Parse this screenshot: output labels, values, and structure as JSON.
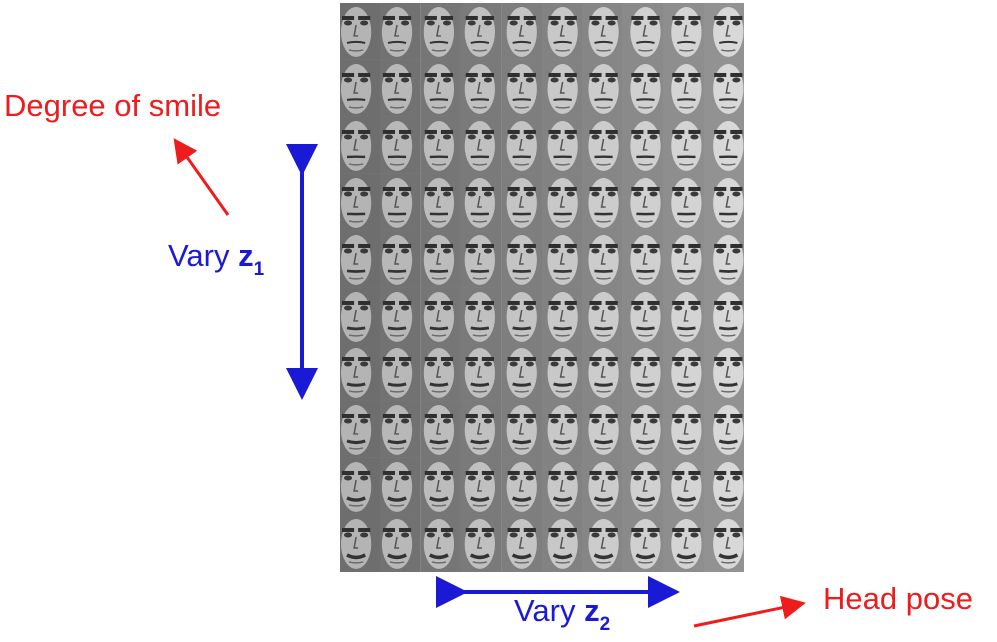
{
  "labels": {
    "degree_of_smile": "Degree of smile",
    "head_pose": "Head pose",
    "vary": "Vary",
    "z1_var": "z",
    "z1_sub": "1",
    "z2_var": "z",
    "z2_sub": "2"
  },
  "colors": {
    "annotation_red": "#ee1c1c",
    "axis_blue": "#1a1ad6"
  },
  "face_grid": {
    "rows": 10,
    "columns": 10,
    "image_kind": "grayscale-face-thumbnail"
  }
}
